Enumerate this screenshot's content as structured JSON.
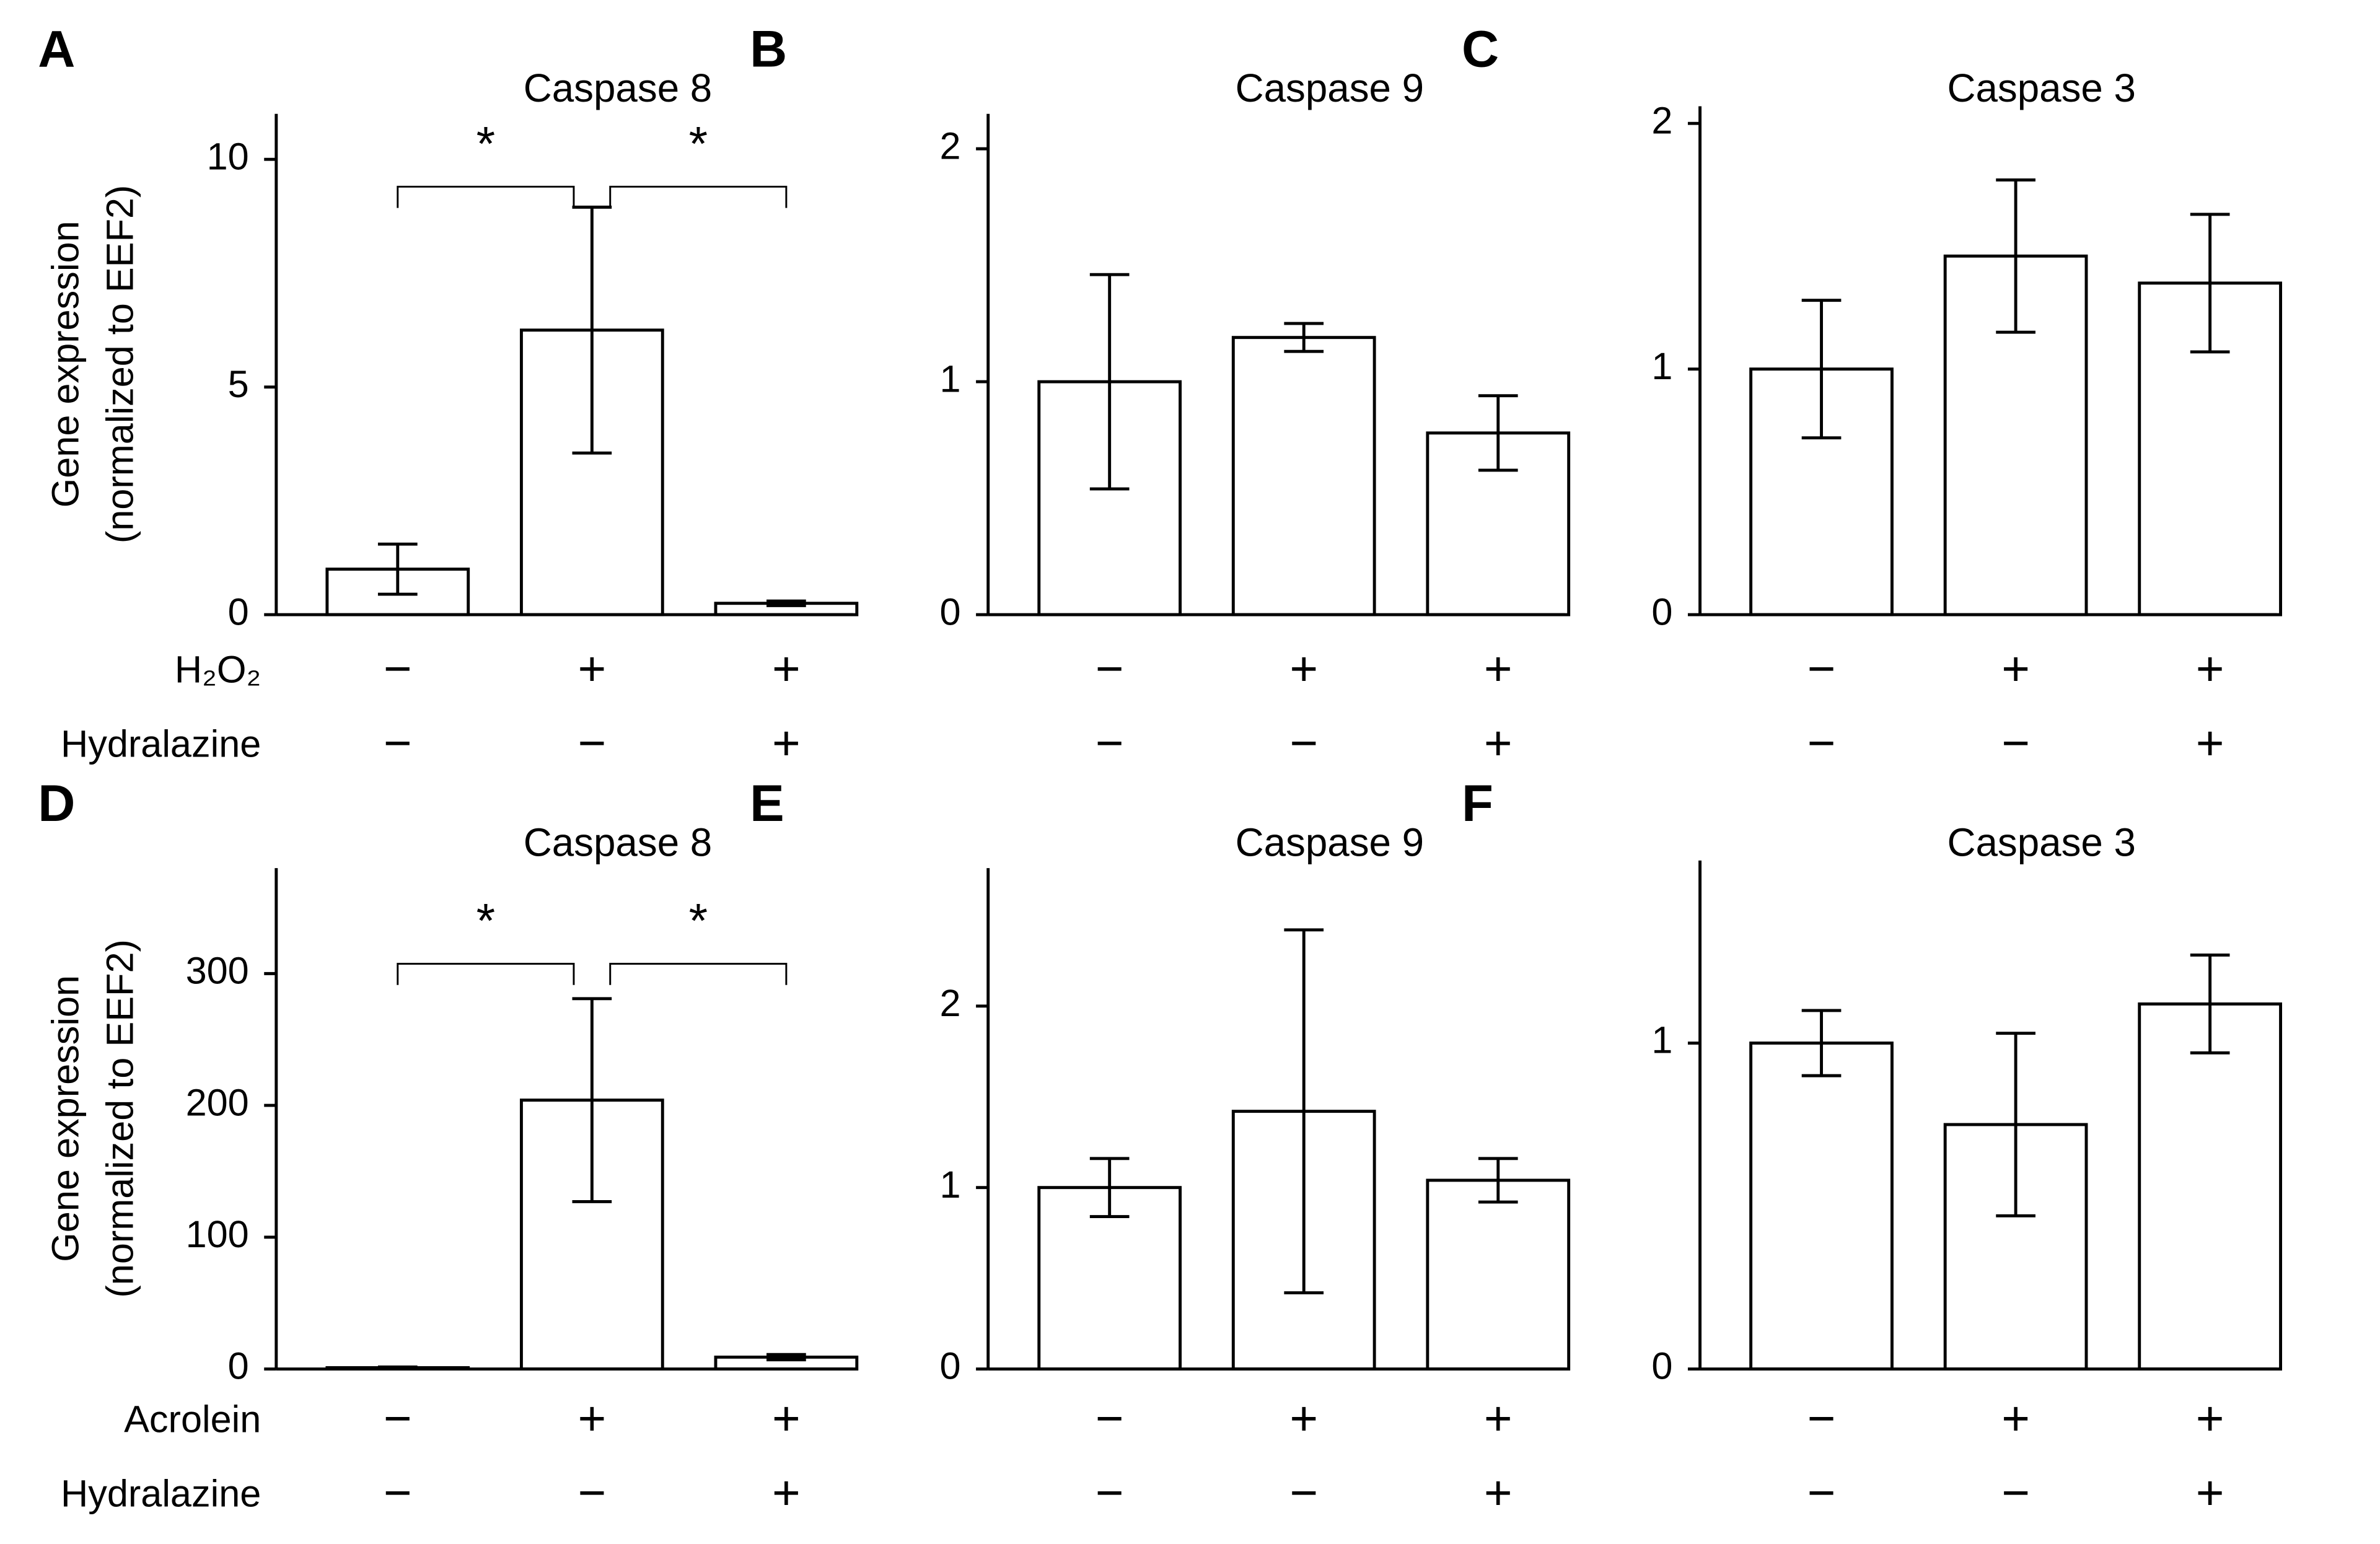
{
  "chart_data": [
    {
      "type": "bar",
      "panel": "A",
      "title": "Caspase 8",
      "ylabel": [
        "Gene expression",
        "(normalized to EEF2)"
      ],
      "values": [
        1.0,
        6.25,
        0.25
      ],
      "errors": [
        0.55,
        2.7,
        0.05
      ],
      "ylim": [
        0,
        11
      ],
      "yticks": [
        0,
        5,
        10
      ],
      "treatments": [
        {
          "name": "H₂O₂",
          "levels": [
            "−",
            "+",
            "+"
          ]
        },
        {
          "name": "Hydralazine",
          "levels": [
            "−",
            "−",
            "+"
          ]
        }
      ],
      "annotations": [
        {
          "from": 0,
          "to": 1,
          "label": "*"
        },
        {
          "from": 1,
          "to": 2,
          "label": "*"
        }
      ]
    },
    {
      "type": "bar",
      "panel": "B",
      "title": "Caspase 9",
      "values": [
        1.0,
        1.19,
        0.78
      ],
      "errors": [
        0.46,
        0.06,
        0.16
      ],
      "ylim": [
        0,
        2.15
      ],
      "yticks": [
        0,
        1,
        2
      ],
      "treatments": [
        {
          "levels": [
            "−",
            "+",
            "+"
          ]
        },
        {
          "levels": [
            "−",
            "−",
            "+"
          ]
        }
      ]
    },
    {
      "type": "bar",
      "panel": "C",
      "title": "Caspase 3",
      "values": [
        1.0,
        1.46,
        1.35
      ],
      "errors": [
        0.28,
        0.31,
        0.28
      ],
      "ylim": [
        0,
        2.07
      ],
      "yticks": [
        0,
        1,
        2
      ],
      "treatments": [
        {
          "levels": [
            "−",
            "+",
            "+"
          ]
        },
        {
          "levels": [
            "−",
            "−",
            "+"
          ]
        }
      ]
    },
    {
      "type": "bar",
      "panel": "D",
      "title": "Caspase 8",
      "ylabel": [
        "Gene expression",
        "(normalized to EEF2)"
      ],
      "values": [
        1,
        204,
        9
      ],
      "errors": [
        0.5,
        77,
        2
      ],
      "ylim": [
        0,
        380
      ],
      "yticks": [
        0,
        100,
        200,
        300
      ],
      "treatments": [
        {
          "name": "Acrolein",
          "levels": [
            "−",
            "+",
            "+"
          ]
        },
        {
          "name": "Hydralazine",
          "levels": [
            "−",
            "−",
            "+"
          ]
        }
      ],
      "annotations": [
        {
          "from": 0,
          "to": 1,
          "label": "*"
        },
        {
          "from": 1,
          "to": 2,
          "label": "*"
        }
      ]
    },
    {
      "type": "bar",
      "panel": "E",
      "title": "Caspase 9",
      "values": [
        1.0,
        1.42,
        1.04
      ],
      "errors": [
        0.16,
        1.0,
        0.12
      ],
      "ylim": [
        0,
        2.76
      ],
      "yticks": [
        0,
        1,
        2
      ],
      "treatments": [
        {
          "levels": [
            "−",
            "+",
            "+"
          ]
        },
        {
          "levels": [
            "−",
            "−",
            "+"
          ]
        }
      ]
    },
    {
      "type": "bar",
      "panel": "F",
      "title": "Caspase 3",
      "values": [
        1.0,
        0.75,
        1.12
      ],
      "errors": [
        0.1,
        0.28,
        0.15
      ],
      "ylim": [
        0,
        1.56
      ],
      "yticks": [
        0,
        1
      ],
      "treatments": [
        {
          "levels": [
            "−",
            "+",
            "+"
          ]
        },
        {
          "levels": [
            "−",
            "−",
            "+"
          ]
        }
      ]
    }
  ]
}
